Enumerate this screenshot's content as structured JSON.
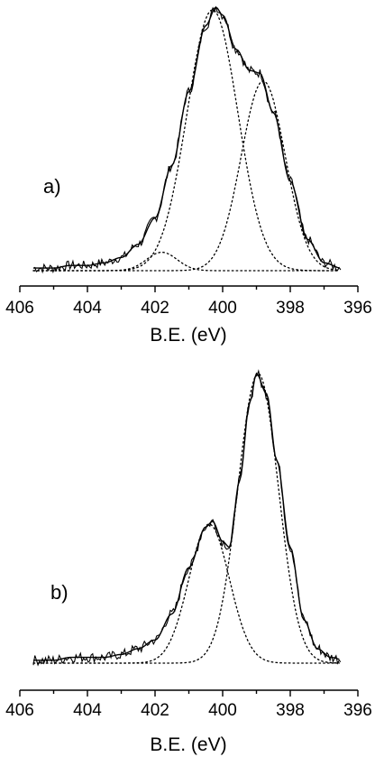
{
  "chart_data": [
    {
      "type": "line",
      "panel_label": "a)",
      "xlabel": "B.E. (eV)",
      "ylabel": "",
      "xlim": [
        406,
        396
      ],
      "x_reversed": true,
      "x_ticks": [
        406,
        404,
        402,
        400,
        398,
        396
      ],
      "x_tick_labels": [
        "406",
        "404",
        "402",
        "400",
        "398",
        "396"
      ],
      "ylim": [
        0,
        1
      ],
      "grid": false,
      "legend": "none",
      "series": [
        {
          "role": "measured",
          "x": [
            405.5,
            405.0,
            404.5,
            404.0,
            403.5,
            403.0,
            402.5,
            402.0,
            401.5,
            401.0,
            400.5,
            400.2,
            400.0,
            399.6,
            399.2,
            398.9,
            398.5,
            398.0,
            397.5,
            397.0,
            396.5
          ],
          "y": [
            0.01,
            0.01,
            0.02,
            0.02,
            0.03,
            0.05,
            0.1,
            0.2,
            0.4,
            0.68,
            0.93,
            1.0,
            0.97,
            0.84,
            0.76,
            0.75,
            0.6,
            0.34,
            0.12,
            0.03,
            0.01
          ]
        },
        {
          "role": "fit",
          "x": [
            405.5,
            405.0,
            404.5,
            404.0,
            403.5,
            403.0,
            402.5,
            402.0,
            401.5,
            401.0,
            400.5,
            400.2,
            400.0,
            399.6,
            399.2,
            398.9,
            398.5,
            398.0,
            397.5,
            397.0,
            396.5
          ],
          "y": [
            0.01,
            0.01,
            0.02,
            0.02,
            0.03,
            0.05,
            0.1,
            0.2,
            0.4,
            0.68,
            0.93,
            1.0,
            0.97,
            0.84,
            0.76,
            0.75,
            0.6,
            0.34,
            0.12,
            0.03,
            0.01
          ]
        },
        {
          "role": "component",
          "peak_center": 400.3,
          "peak_height": 0.99,
          "peak_width": 0.75
        },
        {
          "role": "component",
          "peak_center": 398.8,
          "peak_height": 0.72,
          "peak_width": 0.65
        },
        {
          "role": "component",
          "peak_center": 401.8,
          "peak_height": 0.07,
          "peak_width": 0.45
        }
      ]
    },
    {
      "type": "line",
      "panel_label": "b)",
      "xlabel": "B.E. (eV)",
      "ylabel": "",
      "xlim": [
        406,
        396
      ],
      "x_reversed": true,
      "x_ticks": [
        406,
        404,
        402,
        400,
        398,
        396
      ],
      "x_tick_labels": [
        "406",
        "404",
        "402",
        "400",
        "398",
        "396"
      ],
      "ylim": [
        0,
        1
      ],
      "grid": false,
      "legend": "none",
      "series": [
        {
          "role": "measured",
          "x": [
            405.5,
            405.0,
            404.5,
            404.0,
            403.5,
            403.0,
            402.5,
            402.0,
            401.5,
            401.0,
            400.5,
            400.3,
            400.0,
            399.8,
            399.5,
            399.2,
            399.0,
            398.7,
            398.4,
            398.0,
            397.6,
            397.2,
            396.8,
            396.4
          ],
          "y": [
            0.01,
            0.01,
            0.02,
            0.02,
            0.02,
            0.03,
            0.05,
            0.08,
            0.17,
            0.33,
            0.47,
            0.49,
            0.42,
            0.4,
            0.63,
            0.9,
            1.0,
            0.93,
            0.7,
            0.4,
            0.15,
            0.05,
            0.02,
            0.01
          ]
        },
        {
          "role": "fit",
          "x": [
            405.5,
            405.0,
            404.5,
            404.0,
            403.5,
            403.0,
            402.5,
            402.0,
            401.5,
            401.0,
            400.5,
            400.3,
            400.0,
            399.8,
            399.5,
            399.2,
            399.0,
            398.7,
            398.4,
            398.0,
            397.6,
            397.2,
            396.8,
            396.4
          ],
          "y": [
            0.01,
            0.01,
            0.02,
            0.02,
            0.02,
            0.03,
            0.05,
            0.08,
            0.17,
            0.33,
            0.47,
            0.49,
            0.42,
            0.4,
            0.63,
            0.9,
            1.0,
            0.93,
            0.7,
            0.4,
            0.15,
            0.05,
            0.02,
            0.01
          ]
        },
        {
          "role": "component",
          "peak_center": 400.4,
          "peak_height": 0.48,
          "peak_width": 0.6
        },
        {
          "role": "component",
          "peak_center": 398.95,
          "peak_height": 1.0,
          "peak_width": 0.6
        }
      ]
    }
  ]
}
